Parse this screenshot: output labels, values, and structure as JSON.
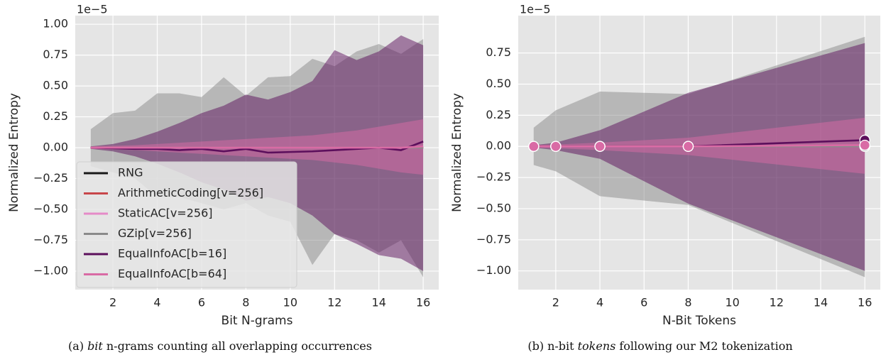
{
  "chart_data": [
    {
      "type": "line",
      "xlabel": "Bit N-grams",
      "ylabel": "Normalized Entropy",
      "offset_label": "1e−5",
      "caption": {
        "parts": [
          "(a)",
          "bit",
          "n-grams counting all overlapping occurrences"
        ],
        "italic": [
          1
        ]
      },
      "x": [
        1,
        2,
        3,
        4,
        5,
        6,
        7,
        8,
        9,
        10,
        11,
        12,
        13,
        14,
        15,
        16
      ],
      "xlim": [
        0.3,
        16.7
      ],
      "ylim": [
        -1.15,
        1.07
      ],
      "xticks": [
        2,
        4,
        6,
        8,
        10,
        12,
        14,
        16
      ],
      "yticks": [
        {
          "value": 1,
          "label": "1.00"
        },
        0.75,
        {
          "value": 0.5,
          "label": "0.50"
        },
        0.25,
        {
          "value": 0,
          "label": "0.00"
        },
        {
          "value": -0.25,
          "label": "−0.25"
        },
        {
          "value": -0.5,
          "label": "−0.50"
        },
        {
          "value": -0.75,
          "label": "−0.75"
        },
        {
          "value": -1,
          "label": "−1.00"
        }
      ],
      "grid": true,
      "legend": "lower left",
      "band_opacity": 0.5,
      "series": [
        {
          "name": "RNG",
          "color": "#1a1a1a",
          "values": [
            0,
            0,
            0,
            0,
            0,
            0,
            0,
            0,
            0,
            0,
            0,
            0,
            0,
            0,
            0,
            0
          ]
        },
        {
          "name": "ArithmeticCoding[v=256]",
          "color": "#c8464a",
          "values": [
            0,
            0,
            0,
            0,
            0,
            0,
            0,
            0,
            0,
            0,
            0,
            0,
            0,
            0,
            0,
            0
          ]
        },
        {
          "name": "StaticAC[v=256]",
          "color": "#e58ac8",
          "values": [
            0,
            0,
            0,
            0,
            0,
            0,
            0,
            0,
            0,
            0,
            0,
            0,
            0,
            0,
            0,
            0
          ]
        },
        {
          "name": "GZip[v=256]",
          "color": "#8a8a8a",
          "values": [
            0,
            0,
            0,
            0,
            0,
            0,
            0,
            0,
            0,
            0,
            0,
            0,
            0,
            0,
            0,
            0
          ],
          "upper": [
            0.15,
            0.28,
            0.3,
            0.44,
            0.44,
            0.41,
            0.57,
            0.42,
            0.57,
            0.58,
            0.72,
            0.66,
            0.78,
            0.84,
            0.76,
            0.88
          ],
          "lower": [
            -0.15,
            -0.2,
            -0.25,
            -0.4,
            -0.4,
            -0.45,
            -0.5,
            -0.45,
            -0.55,
            -0.6,
            -0.95,
            -0.7,
            -0.75,
            -0.85,
            -0.75,
            -1.05
          ]
        },
        {
          "name": "EqualInfoAC[b=16]",
          "color": "#5c0f5c",
          "values": [
            0,
            -0.005,
            -0.01,
            -0.01,
            -0.02,
            -0.01,
            -0.03,
            -0.01,
            -0.04,
            -0.035,
            -0.03,
            -0.02,
            -0.01,
            0,
            -0.02,
            0.05
          ],
          "upper": [
            0.01,
            0.03,
            0.07,
            0.13,
            0.2,
            0.28,
            0.34,
            0.43,
            0.39,
            0.45,
            0.54,
            0.79,
            0.71,
            0.78,
            0.91,
            0.83
          ],
          "lower": [
            -0.01,
            -0.03,
            -0.07,
            -0.13,
            -0.2,
            -0.28,
            -0.34,
            -0.43,
            -0.4,
            -0.45,
            -0.55,
            -0.7,
            -0.78,
            -0.87,
            -0.9,
            -1.0
          ]
        },
        {
          "name": "EqualInfoAC[b=64]",
          "color": "#d96ba5",
          "values": [
            0,
            0,
            0,
            0,
            0,
            0,
            0,
            0,
            0,
            0,
            0,
            0,
            0,
            0,
            0,
            0.01
          ],
          "upper": [
            0.01,
            0.015,
            0.02,
            0.03,
            0.04,
            0.05,
            0.06,
            0.07,
            0.08,
            0.09,
            0.1,
            0.12,
            0.14,
            0.17,
            0.2,
            0.23
          ],
          "lower": [
            -0.01,
            -0.015,
            -0.02,
            -0.03,
            -0.04,
            -0.05,
            -0.06,
            -0.07,
            -0.08,
            -0.09,
            -0.1,
            -0.12,
            -0.14,
            -0.17,
            -0.2,
            -0.22
          ]
        }
      ]
    },
    {
      "type": "line",
      "xlabel": "N-Bit Tokens",
      "ylabel": "Normalized Entropy",
      "offset_label": "1e−5",
      "caption": {
        "parts": [
          "(b)",
          "n-bit",
          "tokens",
          "following our M2 tokenization"
        ],
        "italic": [
          2
        ]
      },
      "x": [
        1,
        2,
        4,
        8,
        16
      ],
      "xlim": [
        0.3,
        16.7
      ],
      "ylim": [
        -1.15,
        1.05
      ],
      "xticks": [
        2,
        4,
        6,
        8,
        10,
        12,
        14,
        16
      ],
      "yticks": [
        0.75,
        {
          "value": 0.5,
          "label": "0.50"
        },
        0.25,
        {
          "value": 0,
          "label": "0.00"
        },
        {
          "value": -0.25,
          "label": "−0.25"
        },
        {
          "value": -0.5,
          "label": "−0.50"
        },
        {
          "value": -0.75,
          "label": "−0.75"
        },
        {
          "value": -1,
          "label": "−1.00"
        }
      ],
      "grid": true,
      "markers": true,
      "band_opacity": 0.5,
      "series": [
        {
          "color": "#1a1a1a",
          "values": [
            0,
            0,
            0,
            0,
            0
          ]
        },
        {
          "color": "#c8464a",
          "values": [
            0,
            0,
            0,
            0,
            0
          ]
        },
        {
          "color": "#e58ac8",
          "values": [
            0,
            0,
            0,
            0,
            0
          ]
        },
        {
          "color": "#8a8a8a",
          "values": [
            0,
            0,
            0,
            0,
            0
          ],
          "upper": [
            0.15,
            0.29,
            0.44,
            0.42,
            0.88
          ],
          "lower": [
            -0.15,
            -0.2,
            -0.4,
            -0.47,
            -1.05
          ]
        },
        {
          "color": "#5c0f5c",
          "values": [
            0,
            0,
            0,
            0,
            0.05
          ],
          "upper": [
            0.01,
            0.03,
            0.13,
            0.43,
            0.83
          ],
          "lower": [
            -0.01,
            -0.03,
            -0.1,
            -0.46,
            -1.0
          ]
        },
        {
          "color": "#d96ba5",
          "values": [
            0,
            0,
            0,
            0,
            0.01
          ],
          "upper": [
            0.01,
            0.015,
            0.03,
            0.07,
            0.23
          ],
          "lower": [
            -0.01,
            -0.015,
            -0.03,
            -0.07,
            -0.22
          ]
        }
      ]
    }
  ]
}
